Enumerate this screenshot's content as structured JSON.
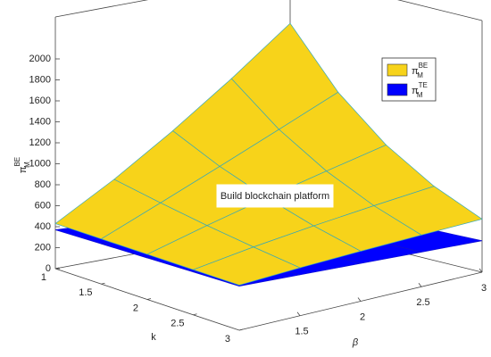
{
  "chart_data": {
    "type": "surface",
    "xlabel": "β",
    "ylabel": "k",
    "zlabel": "π_M^BE",
    "annotation": "Build blockchain platform",
    "x": [
      1,
      1.5,
      2,
      2.5,
      3
    ],
    "y": [
      1,
      1.5,
      2,
      2.5,
      3
    ],
    "xlim": [
      1,
      3
    ],
    "ylim": [
      1,
      3
    ],
    "zlim": [
      0,
      2400
    ],
    "xticks": [
      1.5,
      2,
      2.5,
      3
    ],
    "yticks": [
      1,
      1.5,
      2,
      2.5,
      3
    ],
    "zticks": [
      0,
      200,
      400,
      600,
      800,
      1000,
      1200,
      1400,
      1600,
      1800,
      2000
    ],
    "legend": "upper right",
    "series": [
      {
        "name": "π_M^TE",
        "color": "#0000ff",
        "edge": "#1010d0",
        "z": [
          [
            370,
            340,
            310,
            280,
            250
          ],
          [
            383,
            353,
            323,
            293,
            263
          ],
          [
            395,
            365,
            335,
            305,
            275
          ],
          [
            408,
            378,
            348,
            318,
            288
          ],
          [
            420,
            390,
            360,
            330,
            300
          ]
        ]
      },
      {
        "name": "π_M^BE",
        "color": "#f7d31a",
        "edge": "#3aa9b5",
        "z": [
          [
            430,
            747,
            1106,
            1499,
            1922
          ],
          [
            430,
            661,
            896,
            1136,
            1378
          ],
          [
            430,
            584,
            727,
            860,
            988
          ],
          [
            430,
            517,
            589,
            651,
            707
          ],
          [
            430,
            457,
            477,
            493,
            507
          ]
        ]
      }
    ]
  }
}
